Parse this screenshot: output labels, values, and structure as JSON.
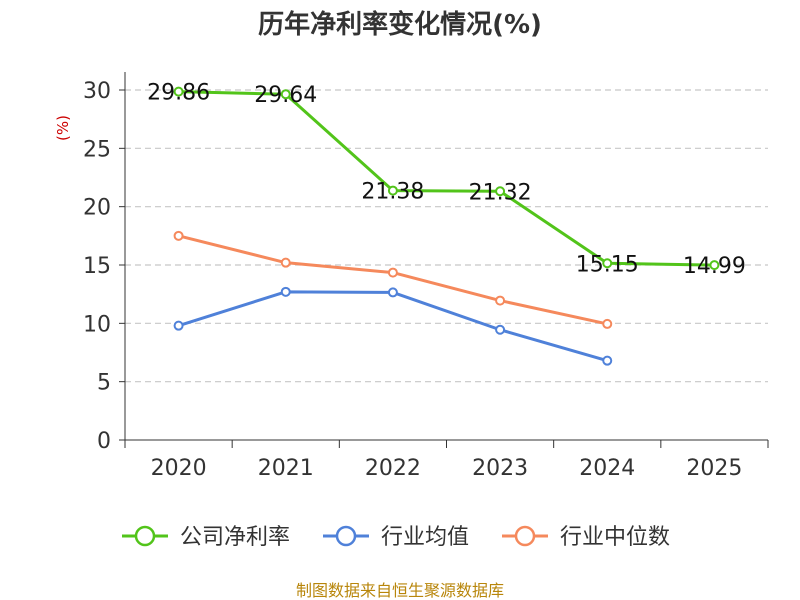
{
  "chart_data": {
    "type": "line",
    "title": "历年净利率变化情况(%)",
    "ylabel": "(%)",
    "xlabel": "",
    "categories": [
      "2020",
      "2021",
      "2022",
      "2023",
      "2024",
      "2025"
    ],
    "ylim": [
      0,
      30
    ],
    "yticks": [
      0,
      5,
      10,
      15,
      20,
      25,
      30
    ],
    "grid": true,
    "legend_position": "bottom",
    "series": [
      {
        "name": "公司净利率",
        "color": "#52c41a",
        "values": [
          29.86,
          29.64,
          21.38,
          21.32,
          15.15,
          14.99
        ],
        "labels": [
          "29.86",
          "29.64",
          "21.38",
          "21.32",
          "15.15",
          "14.99"
        ]
      },
      {
        "name": "行业均值",
        "color": "#4f81d9",
        "values": [
          9.8,
          12.7,
          12.65,
          9.45,
          6.8,
          null
        ]
      },
      {
        "name": "行业中位数",
        "color": "#f5895c",
        "values": [
          17.5,
          15.2,
          14.35,
          11.95,
          9.95,
          null
        ]
      }
    ]
  },
  "source": "制图数据来自恒生聚源数据库"
}
